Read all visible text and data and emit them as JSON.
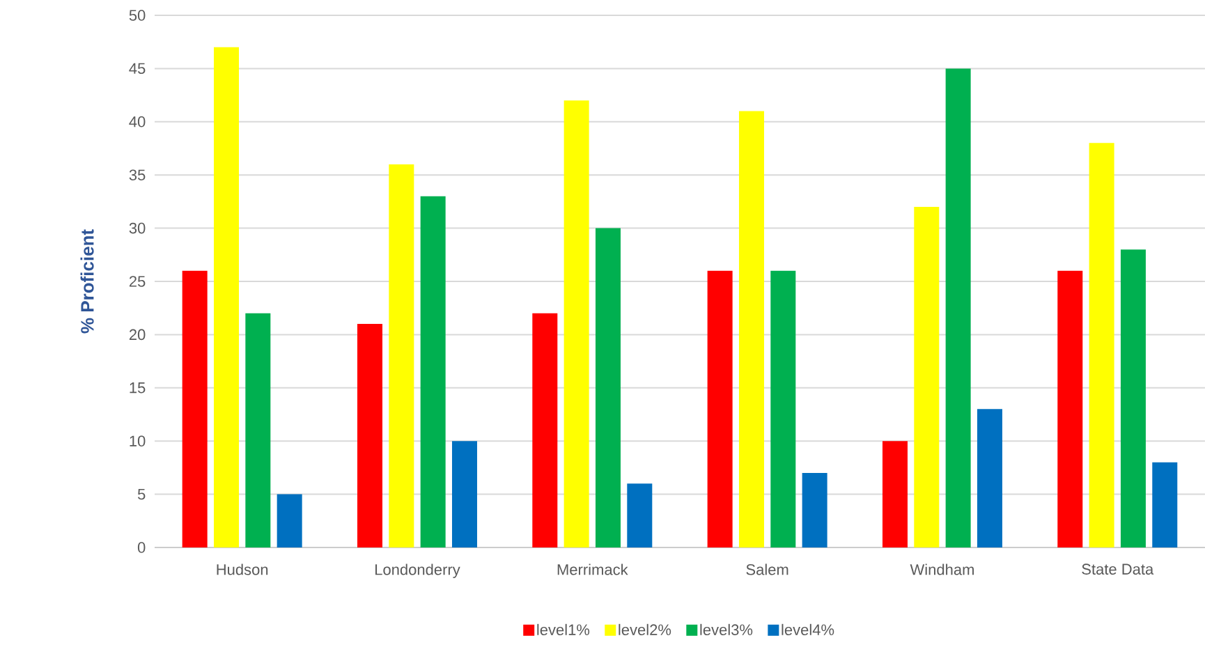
{
  "chart_data": {
    "type": "bar",
    "ylabel": "% Proficient",
    "categories": [
      "Hudson",
      "Londonderry",
      "Merrimack",
      "Salem",
      "Windham",
      "State Data"
    ],
    "series": [
      {
        "name": "level1%",
        "color": "#ff0000",
        "values": [
          26,
          21,
          22,
          26,
          10,
          26
        ]
      },
      {
        "name": "level2%",
        "color": "#ffff00",
        "values": [
          47,
          36,
          42,
          41,
          32,
          38
        ]
      },
      {
        "name": "level3%",
        "color": "#00b050",
        "values": [
          22,
          33,
          30,
          26,
          45,
          28
        ]
      },
      {
        "name": "level4%",
        "color": "#0070c0",
        "values": [
          5,
          10,
          6,
          7,
          13,
          8
        ]
      }
    ],
    "ylim": [
      0,
      50
    ],
    "yticks": [
      0,
      5,
      10,
      15,
      20,
      25,
      30,
      35,
      40,
      45,
      50
    ],
    "grid": "y",
    "legend": "bottom"
  }
}
